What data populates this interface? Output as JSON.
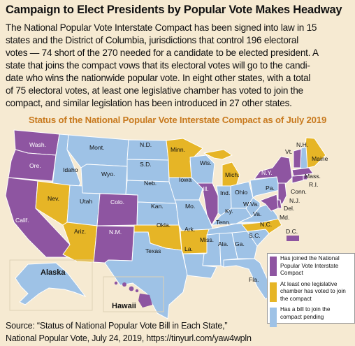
{
  "headline": "Campaign to Elect Presidents by Popular Vote Makes Headway",
  "paragraph_lines": [
    "The National Popular Vote Interstate Compact has been signed into law in 15",
    "states and the District of Columbia, jurisdictions that control 196 electoral",
    "votes — 74 short of the 270 needed for a candidate to be elected president. A",
    "state that joins the compact vows that its electoral votes will go to the candi-",
    "date who wins the nationwide popular vote. In eight other states, with a total",
    "of 75 electoral votes, at least one legislative chamber has voted to join the",
    "compact, and similar legislation has been introduced in 27 other states."
  ],
  "map": {
    "title": "Status of the National Popular Vote Interstate Compact as of July 2019",
    "colors": {
      "joined": "#8e55a1",
      "one_chamber": "#e6b526",
      "bill": "#9ec2e6",
      "border": "#ffffff",
      "background": "#f6ead2"
    },
    "states": {
      "wa": "Wash.",
      "or": "Ore.",
      "ca": "Calif.",
      "id": "Idaho",
      "nv": "Nev.",
      "ut": "Utah",
      "az": "Ariz.",
      "mt": "Mont.",
      "wy": "Wyo.",
      "co": "Colo.",
      "nm": "N.M.",
      "nd": "N.D.",
      "sd": "S.D.",
      "ne": "Neb.",
      "ks": "Kan.",
      "ok": "Okla.",
      "tx": "Texas",
      "mn": "Minn.",
      "ia": "Iowa",
      "mo": "Mo.",
      "ar": "Ark.",
      "la": "La.",
      "wi": "Wis.",
      "il": "Ill.",
      "mi": "Mich.",
      "in": "Ind.",
      "oh": "Ohio",
      "ky": "Ky.",
      "tn": "Tenn.",
      "ms": "Miss.",
      "al": "Ala.",
      "ga": "Ga.",
      "fl": "Fla.",
      "sc": "S.C.",
      "nc": "N.C.",
      "va": "Va.",
      "wv": "W.Va.",
      "pa": "Pa.",
      "ny": "N.Y.",
      "me": "Maine",
      "nh": "N.H.",
      "vt": "Vt.",
      "ma": "Mass.",
      "ri": "R.I.",
      "ct": "Conn.",
      "nj": "N.J.",
      "de": "Del.",
      "md": "Md.",
      "dc": "D.C.",
      "ak": "Alaska",
      "hi": "Hawaii"
    }
  },
  "legend": [
    {
      "color": "#8e55a1",
      "label": "Has joined the National Popular Vote Interstate Compact"
    },
    {
      "color": "#e6b526",
      "label": "At least one legislative chamber has voted to join the compact"
    },
    {
      "color": "#9ec2e6",
      "label": "Has a bill to join the compact pending"
    }
  ],
  "source_lines": [
    "Source: “Status of National Popular Vote Bill in Each State,”",
    "National Popular Vote, July 24, 2019, https://tinyurl.com/yaw4wpln"
  ]
}
